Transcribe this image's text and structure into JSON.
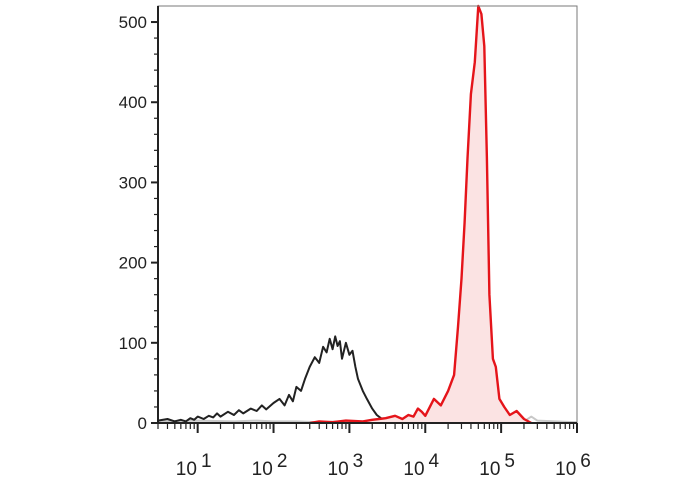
{
  "chart_data": {
    "type": "area",
    "title": "",
    "xlabel": "",
    "ylabel": "",
    "x_scale": "log",
    "xlim": [
      3,
      1000000
    ],
    "ylim": [
      0,
      520
    ],
    "grid": false,
    "legend": "none",
    "y_ticks": [
      0,
      100,
      200,
      300,
      400,
      500
    ],
    "x_ticks": [
      {
        "value": 10,
        "base": "10",
        "exp": "1"
      },
      {
        "value": 100,
        "base": "10",
        "exp": "2"
      },
      {
        "value": 1000,
        "base": "10",
        "exp": "3"
      },
      {
        "value": 10000,
        "base": "10",
        "exp": "4"
      },
      {
        "value": 100000,
        "base": "10",
        "exp": "5"
      },
      {
        "value": 1000000,
        "base": "10",
        "exp": "6"
      }
    ],
    "series": [
      {
        "color": "#e5141a",
        "fill": "#fbe3e3",
        "filled": true,
        "x": [
          300,
          400,
          600,
          900,
          1500,
          2000,
          3000,
          4000,
          5000,
          6000,
          7000,
          8000,
          9000,
          10000,
          13000,
          16000,
          20000,
          24000,
          27000,
          30000,
          33000,
          36000,
          40000,
          45000,
          50000,
          55000,
          60000,
          65000,
          70000,
          78000,
          85000,
          95000,
          110000,
          130000,
          160000,
          200000,
          250000
        ],
        "y": [
          0,
          2,
          1,
          3,
          2,
          4,
          6,
          9,
          5,
          10,
          8,
          18,
          14,
          9,
          30,
          22,
          40,
          60,
          120,
          180,
          250,
          330,
          410,
          450,
          520,
          510,
          470,
          330,
          160,
          80,
          70,
          30,
          20,
          10,
          15,
          5,
          0
        ]
      },
      {
        "color": "#222222",
        "filled": false,
        "x": [
          3,
          4,
          5,
          6,
          7,
          8,
          9,
          10,
          12,
          14,
          16,
          18,
          20,
          25,
          30,
          35,
          40,
          50,
          60,
          70,
          80,
          100,
          120,
          140,
          160,
          180,
          200,
          230,
          260,
          300,
          350,
          400,
          450,
          500,
          550,
          600,
          650,
          700,
          750,
          800,
          900,
          1000,
          1100,
          1200,
          1300,
          1500,
          1700,
          2000,
          2300,
          2600,
          3000,
          3500,
          4000
        ],
        "y": [
          3,
          5,
          2,
          4,
          2,
          6,
          4,
          8,
          5,
          9,
          7,
          12,
          8,
          14,
          10,
          16,
          12,
          18,
          15,
          22,
          17,
          25,
          30,
          22,
          35,
          27,
          45,
          40,
          55,
          70,
          82,
          75,
          95,
          88,
          105,
          92,
          108,
          96,
          102,
          80,
          100,
          85,
          90,
          70,
          55,
          40,
          30,
          18,
          10,
          6,
          3,
          1,
          0
        ]
      },
      {
        "color": "#c8c8c8",
        "filled": false,
        "x": [
          3,
          10,
          30,
          60,
          100,
          200,
          400,
          800,
          1500,
          3000,
          10000,
          50000,
          200000,
          250000,
          300000,
          1000000
        ],
        "y": [
          2,
          3,
          2,
          3,
          2,
          2,
          1,
          2,
          1,
          1,
          0,
          0,
          2,
          8,
          3,
          1
        ]
      }
    ]
  }
}
